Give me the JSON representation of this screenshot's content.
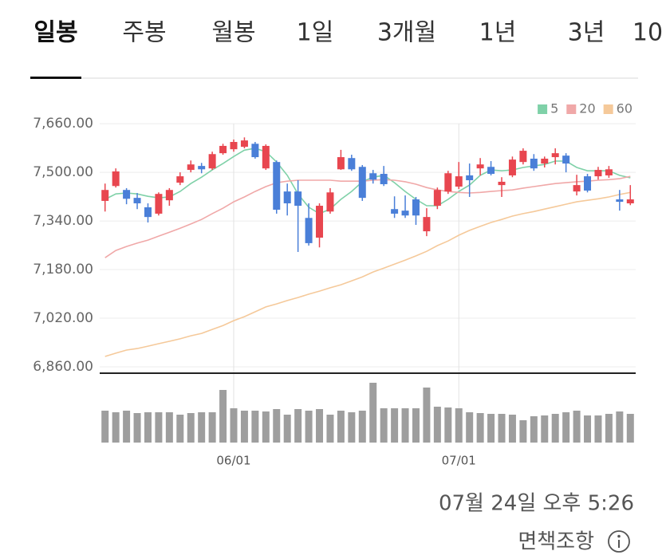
{
  "tabs": [
    "일봉",
    "주봉",
    "월봉",
    "1일",
    "3개월",
    "1년",
    "3년",
    "10"
  ],
  "footer": {
    "timestamp": "07월 24일 오후 5:26",
    "disclaimer": "면책조항"
  },
  "chart_data": {
    "type": "candlestick",
    "categories": [
      null,
      null,
      null,
      null,
      null,
      null,
      null,
      null,
      null,
      null,
      null,
      null,
      "06/01",
      null,
      null,
      null,
      null,
      null,
      null,
      null,
      null,
      null,
      null,
      null,
      null,
      null,
      null,
      null,
      null,
      null,
      null,
      null,
      null,
      "07/01",
      null,
      null,
      null,
      null,
      null,
      null,
      null,
      null,
      null,
      null,
      null,
      null,
      null,
      null,
      null,
      null
    ],
    "open": [
      7406,
      7455,
      7442,
      7416,
      7385,
      7364,
      7408,
      7466,
      7508,
      7521,
      7513,
      7563,
      7576,
      7584,
      7594,
      7513,
      7534,
      7437,
      7437,
      7350,
      7285,
      7371,
      7510,
      7547,
      7518,
      7497,
      7495,
      7379,
      7374,
      7411,
      7306,
      7390,
      7437,
      7453,
      7490,
      7513,
      7518,
      7458,
      7490,
      7534,
      7545,
      7529,
      7550,
      7555,
      7437,
      7487,
      7487,
      7490,
      7411,
      7398
    ],
    "high": [
      7463,
      7513,
      7448,
      7432,
      7398,
      7434,
      7448,
      7500,
      7539,
      7531,
      7568,
      7594,
      7608,
      7615,
      7600,
      7592,
      7539,
      7463,
      7474,
      7398,
      7398,
      7448,
      7574,
      7558,
      7524,
      7508,
      7521,
      7421,
      7424,
      7419,
      7382,
      7450,
      7505,
      7534,
      7529,
      7547,
      7537,
      7484,
      7552,
      7579,
      7560,
      7552,
      7579,
      7563,
      7492,
      7495,
      7518,
      7521,
      7442,
      7458
    ],
    "low": [
      7371,
      7450,
      7395,
      7379,
      7335,
      7358,
      7390,
      7458,
      7500,
      7497,
      7508,
      7558,
      7568,
      7579,
      7545,
      7508,
      7364,
      7358,
      7238,
      7259,
      7253,
      7364,
      7508,
      7505,
      7406,
      7463,
      7455,
      7350,
      7350,
      7327,
      7290,
      7379,
      7429,
      7445,
      7419,
      7490,
      7490,
      7419,
      7484,
      7526,
      7505,
      7516,
      7526,
      7500,
      7424,
      7434,
      7476,
      7482,
      7374,
      7392
    ],
    "close": [
      7442,
      7503,
      7413,
      7398,
      7353,
      7429,
      7442,
      7487,
      7526,
      7510,
      7560,
      7587,
      7600,
      7605,
      7550,
      7587,
      7377,
      7398,
      7390,
      7267,
      7390,
      7434,
      7550,
      7510,
      7416,
      7476,
      7461,
      7364,
      7358,
      7358,
      7353,
      7442,
      7497,
      7487,
      7474,
      7526,
      7495,
      7469,
      7542,
      7571,
      7513,
      7545,
      7563,
      7529,
      7458,
      7440,
      7508,
      7510,
      7403,
      7411
    ],
    "up_color": "#e8464f",
    "down_color": "#4a7fd8",
    "series": [
      {
        "name": "5",
        "color": "#7fd1a8",
        "values": [
          7411,
          7429,
          7432,
          7429,
          7421,
          7416,
          7419,
          7437,
          7463,
          7484,
          7508,
          7529,
          7552,
          7573,
          7579,
          7568,
          7534,
          7490,
          7429,
          7385,
          7364,
          7379,
          7411,
          7437,
          7469,
          7484,
          7490,
          7466,
          7437,
          7411,
          7390,
          7390,
          7411,
          7437,
          7458,
          7490,
          7508,
          7505,
          7508,
          7516,
          7521,
          7526,
          7537,
          7537,
          7516,
          7505,
          7505,
          7505,
          7490,
          7482
        ]
      },
      {
        "name": "20",
        "color": "#f0a8a8",
        "values": [
          7219,
          7243,
          7256,
          7267,
          7277,
          7290,
          7303,
          7316,
          7330,
          7345,
          7364,
          7382,
          7403,
          7419,
          7437,
          7453,
          7466,
          7471,
          7474,
          7474,
          7474,
          7474,
          7471,
          7471,
          7471,
          7474,
          7476,
          7474,
          7469,
          7461,
          7450,
          7442,
          7437,
          7434,
          7432,
          7434,
          7437,
          7440,
          7442,
          7448,
          7453,
          7458,
          7463,
          7466,
          7469,
          7471,
          7474,
          7476,
          7479,
          7487
        ]
      },
      {
        "name": "60",
        "color": "#f5c99a",
        "values": [
          6894,
          6905,
          6915,
          6920,
          6928,
          6936,
          6944,
          6952,
          6962,
          6970,
          6983,
          6996,
          7012,
          7025,
          7041,
          7057,
          7067,
          7078,
          7088,
          7099,
          7109,
          7120,
          7130,
          7143,
          7156,
          7172,
          7185,
          7198,
          7211,
          7225,
          7240,
          7259,
          7274,
          7293,
          7309,
          7322,
          7335,
          7345,
          7356,
          7364,
          7371,
          7379,
          7387,
          7395,
          7403,
          7408,
          7413,
          7419,
          7427,
          7434
        ]
      }
    ],
    "ylim": [
      6839,
      7726
    ],
    "yticks": [
      {
        "value": 6860,
        "label": "6,860.00"
      },
      {
        "value": 7020,
        "label": "7,020.00"
      },
      {
        "value": 7180,
        "label": "7,180.00"
      },
      {
        "value": 7340,
        "label": "7,340.00"
      },
      {
        "value": 7500,
        "label": "7,500.00"
      },
      {
        "value": 7660,
        "label": "7,660.00"
      }
    ],
    "grid": true,
    "legend": "top-right",
    "volume": {
      "color": "#9e9e9e",
      "ylim": [
        0,
        85
      ],
      "values": [
        40,
        38,
        40,
        37,
        38,
        38,
        38,
        35,
        37,
        38,
        38,
        66,
        43,
        40,
        40,
        39,
        42,
        35,
        42,
        40,
        42,
        35,
        40,
        38,
        40,
        75,
        43,
        43,
        43,
        43,
        69,
        45,
        44,
        43,
        38,
        37,
        36,
        36,
        35,
        28,
        33,
        34,
        36,
        38,
        40,
        34,
        34,
        36,
        39,
        36
      ]
    }
  }
}
